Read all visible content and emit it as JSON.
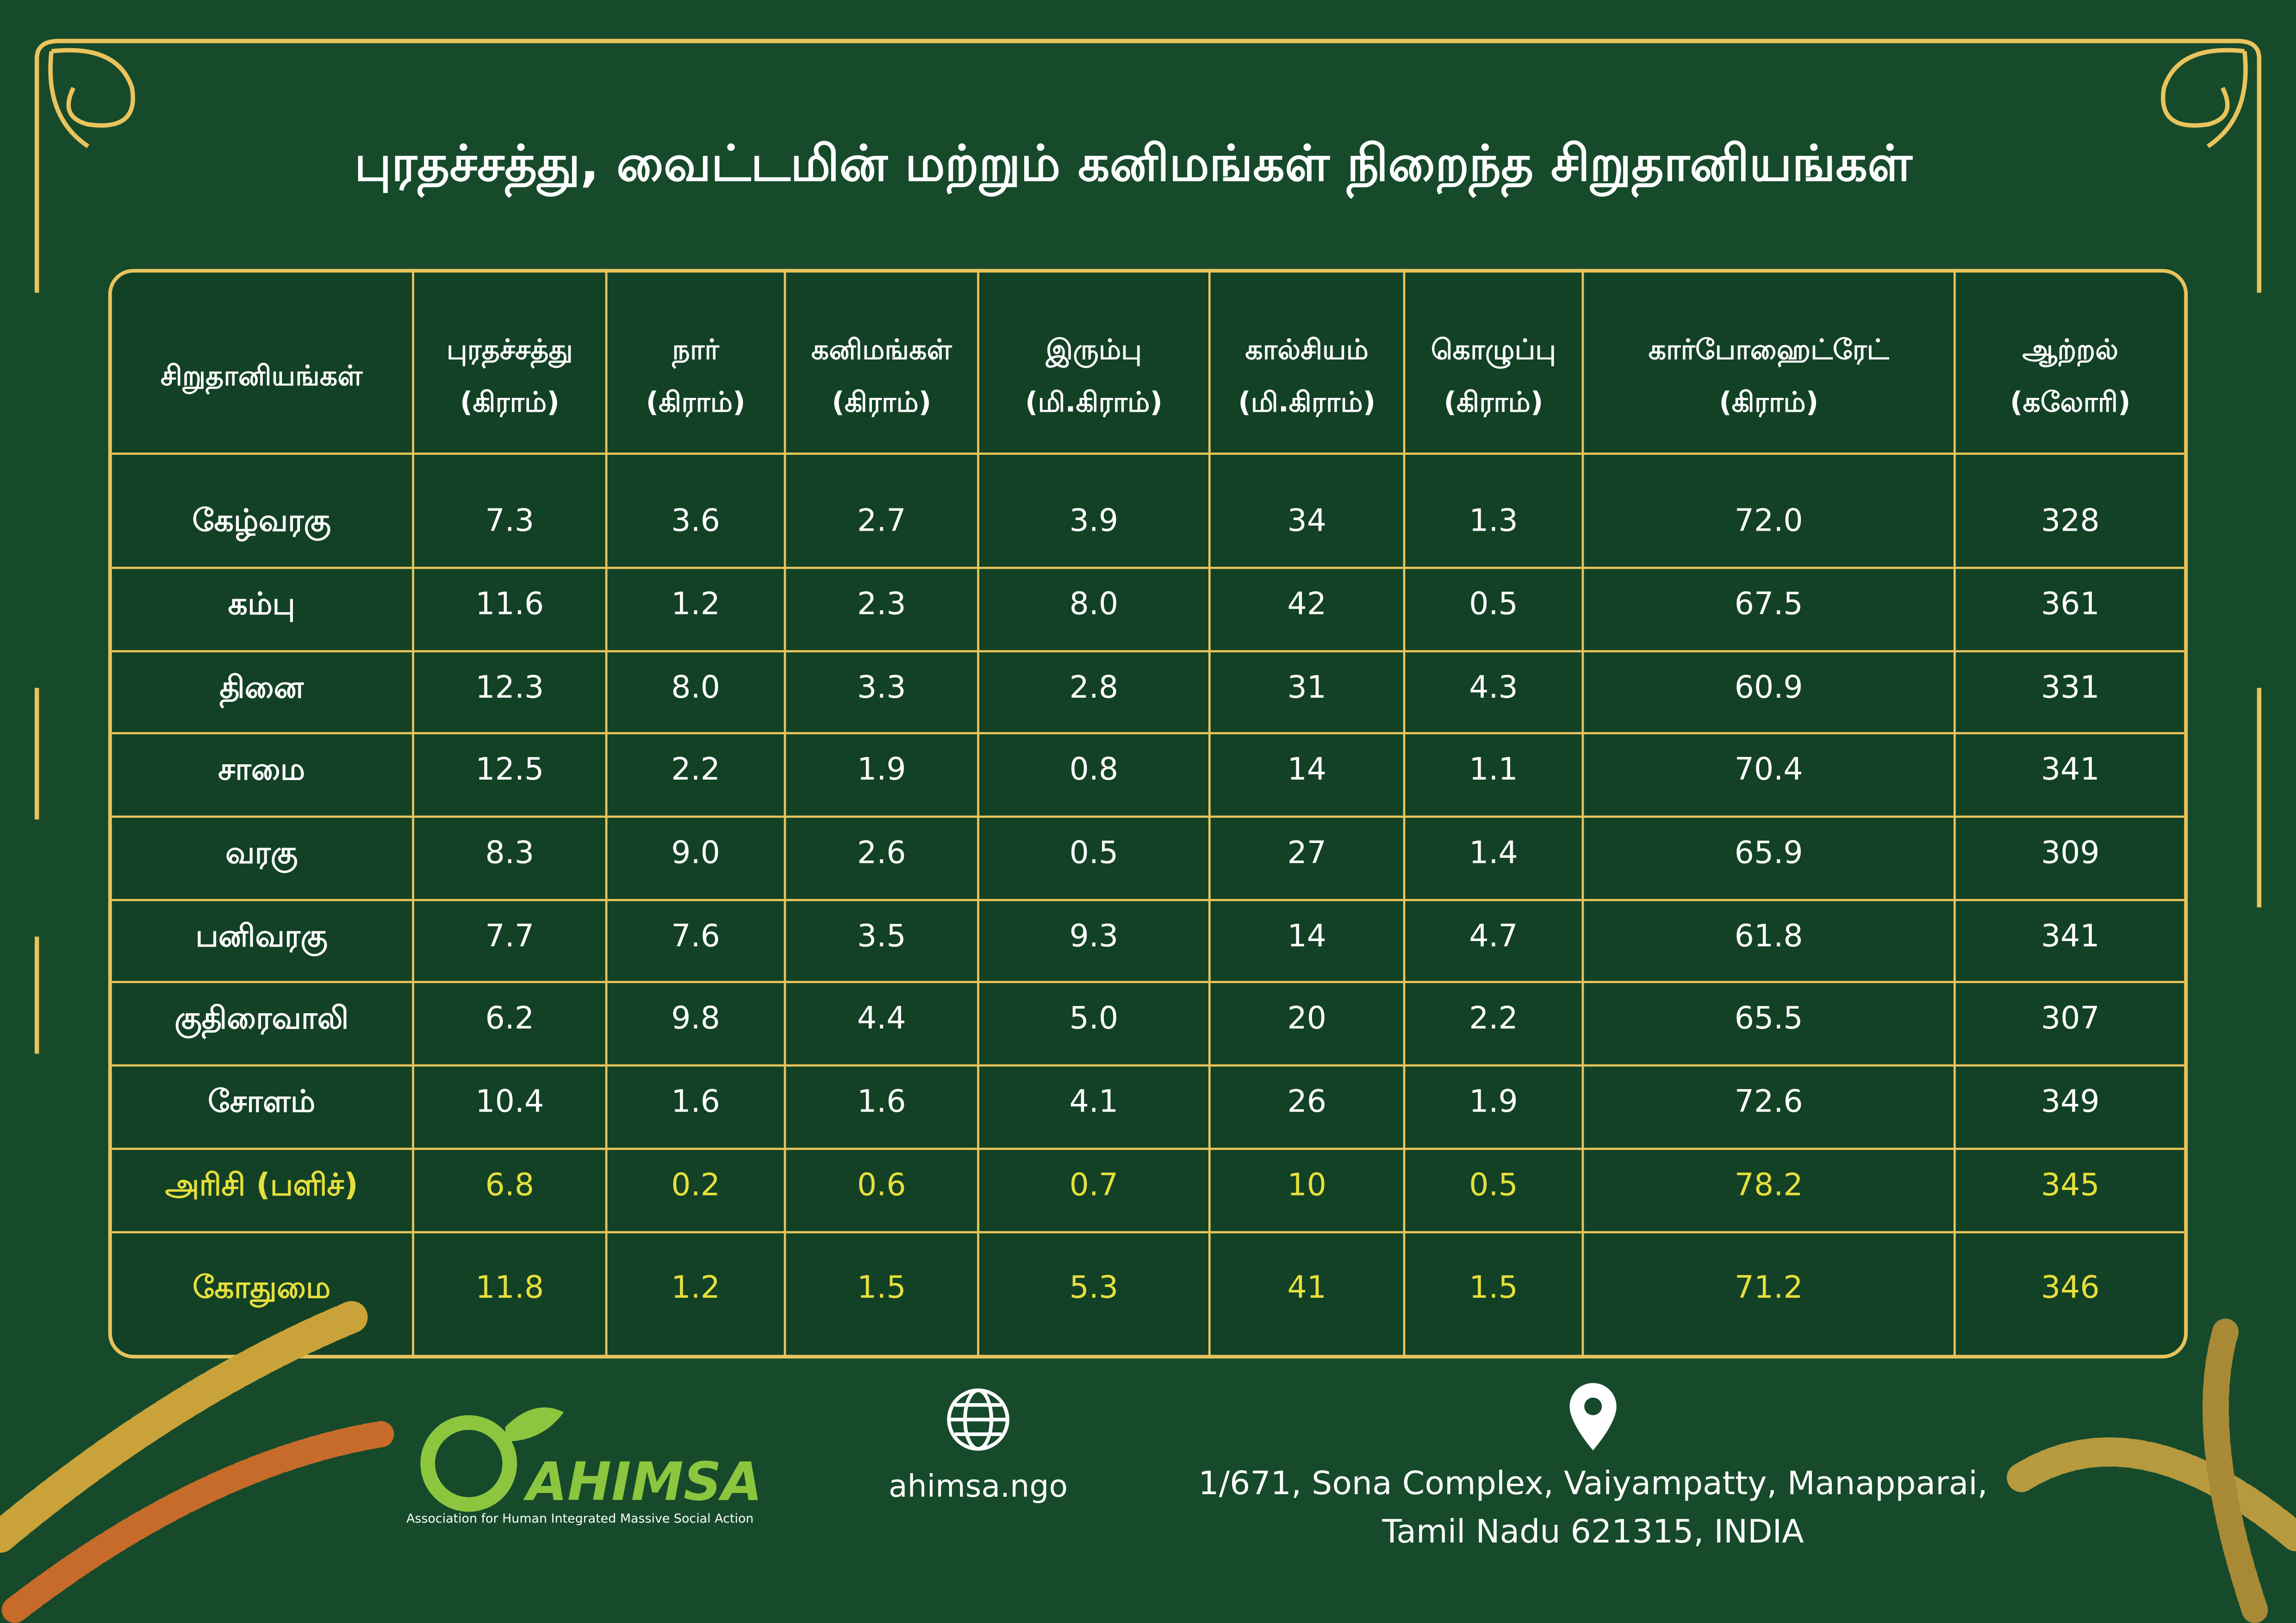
{
  "header": {
    "title": "புரதச்சத்து, வைட்டமின் மற்றும் கனிமங்கள் நிறைந்த சிறுதானியங்கள்"
  },
  "table": {
    "columns": [
      {
        "name": "சிறுதானியங்கள்"
      },
      {
        "name": "புரதச்சத்து",
        "unit": "(கிராம்)"
      },
      {
        "name": "நார்",
        "unit": "(கிராம்)"
      },
      {
        "name": "கனிமங்கள்",
        "unit": "(கிராம்)"
      },
      {
        "name": "இரும்பு",
        "unit": "(மி.கிராம்)"
      },
      {
        "name": "கால்சியம்",
        "unit": "(மி.கிராம்)"
      },
      {
        "name": "கொழுப்பு",
        "unit": "(கிராம்)"
      },
      {
        "name": "கார்போஹைட்ரேட்",
        "unit": "(கிராம்)"
      },
      {
        "name": "ஆற்றல்",
        "unit": "(கலோரி)"
      }
    ],
    "rows": [
      {
        "color": "#ffffff",
        "cells": [
          "கேழ்வரகு",
          "7.3",
          "3.6",
          "2.7",
          "3.9",
          "34",
          "1.3",
          "72.0",
          "328"
        ]
      },
      {
        "color": "#ffffff",
        "cells": [
          "கம்பு",
          "11.6",
          "1.2",
          "2.3",
          "8.0",
          "42",
          "0.5",
          "67.5",
          "361"
        ]
      },
      {
        "color": "#ffffff",
        "cells": [
          "தினை",
          "12.3",
          "8.0",
          "3.3",
          "2.8",
          "31",
          "4.3",
          "60.9",
          "331"
        ]
      },
      {
        "color": "#ffffff",
        "cells": [
          "சாமை",
          "12.5",
          "2.2",
          "1.9",
          "0.8",
          "14",
          "1.1",
          "70.4",
          "341"
        ]
      },
      {
        "color": "#ffffff",
        "cells": [
          "வரகு",
          "8.3",
          "9.0",
          "2.6",
          "0.5",
          "27",
          "1.4",
          "65.9",
          "309"
        ]
      },
      {
        "color": "#ffffff",
        "cells": [
          "பனிவரகு",
          "7.7",
          "7.6",
          "3.5",
          "9.3",
          "14",
          "4.7",
          "61.8",
          "341"
        ]
      },
      {
        "color": "#ffffff",
        "cells": [
          "குதிரைவாலி",
          "6.2",
          "9.8",
          "4.4",
          "5.0",
          "20",
          "2.2",
          "65.5",
          "307"
        ]
      },
      {
        "color": "#ffffff",
        "cells": [
          "சோளம்",
          "10.4",
          "1.6",
          "1.6",
          "4.1",
          "26",
          "1.9",
          "72.6",
          "349"
        ]
      },
      {
        "color": "#e6df3c",
        "cells": [
          "அரிசி (பளிச்)",
          "6.8",
          "0.2",
          "0.6",
          "0.7",
          "10",
          "0.5",
          "78.2",
          "345"
        ]
      },
      {
        "color": "#e6df3c",
        "cells": [
          "கோதுமை",
          "11.8",
          "1.2",
          "1.5",
          "5.3",
          "41",
          "1.5",
          "71.2",
          "346"
        ]
      }
    ]
  },
  "footer": {
    "logo": "AHIMSA",
    "logo_tagline": "Association for Human Integrated Massive Social Action",
    "website": "ahimsa.ngo",
    "address": [
      "1/671, Sona Complex, Vaiyampatty, Manapparai,",
      "Tamil Nadu 621315, INDIA"
    ]
  }
}
